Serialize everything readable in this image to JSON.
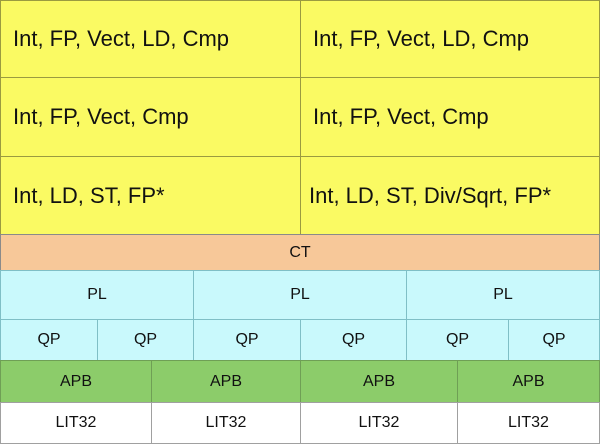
{
  "units": {
    "row1_left": "Int, FP, Vect, LD, Cmp",
    "row1_right": "Int, FP, Vect, LD, Cmp",
    "row2_left": "Int, FP, Vect, Cmp",
    "row2_right": "Int, FP, Vect, Cmp",
    "row3_left": "Int, LD, ST, FP*",
    "row3_right": "Int, LD, ST, Div/Sqrt, FP*"
  },
  "ct": "CT",
  "pl": [
    "PL",
    "PL",
    "PL"
  ],
  "qp": [
    "QP",
    "QP",
    "QP",
    "QP",
    "QP",
    "QP"
  ],
  "apb": [
    "APB",
    "APB",
    "APB",
    "APB"
  ],
  "lit32": [
    "LIT32",
    "LIT32",
    "LIT32",
    "LIT32"
  ],
  "colors": {
    "unit_fill": "#fafa63",
    "ct_fill": "#f7c899",
    "pl_qp_fill": "#c9f9fc",
    "apb_fill": "#8ccc6a",
    "lit_fill": "#ffffff"
  }
}
